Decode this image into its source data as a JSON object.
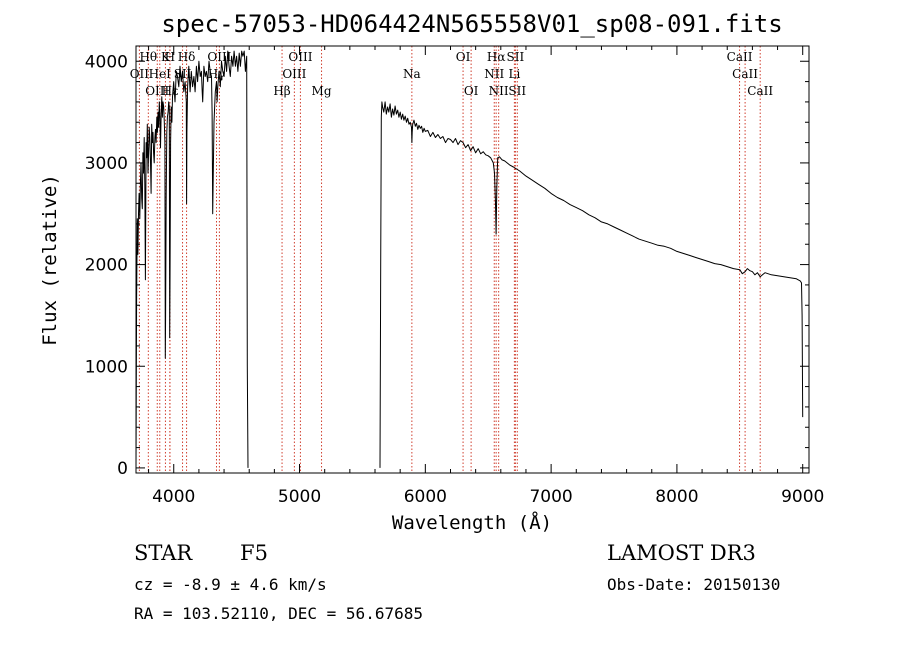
{
  "chart_data": {
    "type": "line",
    "title": "spec-57053-HD064424N565558V01_sp08-091.fits",
    "xlabel": "Wavelength (Å)",
    "ylabel": "Flux (relative)",
    "xlim": [
      3700,
      9050
    ],
    "ylim": [
      -50,
      4150
    ],
    "xticks": [
      4000,
      5000,
      6000,
      7000,
      8000,
      9000
    ],
    "yticks": [
      0,
      1000,
      2000,
      3000,
      4000
    ],
    "series": [
      {
        "name": "spectrum",
        "segments": [
          {
            "x": [
              3700,
              3705,
              3710,
              3715,
              3720,
              3725,
              3730,
              3735,
              3740,
              3745,
              3750,
              3755,
              3760,
              3765,
              3770,
              3775,
              3780,
              3785,
              3790,
              3795,
              3800,
              3805,
              3810,
              3815,
              3820,
              3825,
              3830,
              3835,
              3840,
              3845,
              3850,
              3855,
              3860,
              3865,
              3870,
              3875,
              3880,
              3885,
              3890,
              3895,
              3900,
              3905,
              3910,
              3915,
              3920,
              3925,
              3930,
              3933,
              3935,
              3940,
              3945,
              3950,
              3955,
              3960,
              3965,
              3968,
              3970,
              3975,
              3980,
              3985,
              3990,
              4000,
              4010,
              4020,
              4030,
              4040,
              4050,
              4060,
              4070,
              4080,
              4090,
              4100,
              4102,
              4105,
              4110,
              4120,
              4130,
              4140,
              4150,
              4160,
              4170,
              4180,
              4190,
              4200,
              4210,
              4220,
              4226,
              4230,
              4240,
              4250,
              4260,
              4270,
              4280,
              4290,
              4300,
              4305,
              4310,
              4320,
              4330,
              4340,
              4345,
              4350,
              4360,
              4370,
              4380,
              4390,
              4400,
              4410,
              4420,
              4430,
              4440,
              4450,
              4460,
              4470,
              4480,
              4490,
              4500,
              4510,
              4520,
              4530,
              4540,
              4550,
              4560,
              4570,
              4580,
              4585,
              4590
            ],
            "y": [
              0,
              1650,
              2450,
              2100,
              2500,
              2700,
              2450,
              2800,
              3000,
              2650,
              2550,
              3100,
              2900,
              3250,
              2800,
              1850,
              3200,
              3050,
              3380,
              2900,
              3100,
              3350,
              3250,
              3000,
              2700,
              3380,
              3200,
              3300,
              3100,
              3000,
              3250,
              3330,
              3200,
              3450,
              3300,
              3500,
              3350,
              3600,
              3450,
              3150,
              3500,
              3650,
              3450,
              3600,
              3550,
              3400,
              3200,
              1080,
              1500,
              2700,
              3300,
              3450,
              3500,
              3600,
              3550,
              1280,
              1800,
              3200,
              3550,
              3400,
              3650,
              3800,
              3600,
              3900,
              3850,
              3750,
              3950,
              3800,
              3900,
              3700,
              3800,
              3600,
              2600,
              3300,
              3750,
              3950,
              3700,
              3900,
              3750,
              3850,
              3700,
              3950,
              3800,
              4000,
              3850,
              3900,
              3700,
              3600,
              3950,
              3850,
              3900,
              3800,
              4000,
              3900,
              3850,
              3500,
              2500,
              3400,
              3700,
              3800,
              3600,
              3750,
              3900,
              3750,
              4000,
              3900,
              3850,
              4050,
              3900,
              4100,
              3950,
              3850,
              4050,
              3950,
              4100,
              3950,
              4050,
              3900,
              4080,
              3950,
              4100,
              4050,
              4100,
              3900,
              4050,
              1000,
              0
            ]
          },
          {
            "x": [
              5640,
              5645,
              5650,
              5655,
              5660,
              5670,
              5680,
              5690,
              5700,
              5710,
              5720,
              5730,
              5740,
              5750,
              5760,
              5770,
              5780,
              5790,
              5800,
              5810,
              5820,
              5830,
              5840,
              5850,
              5860,
              5870,
              5880,
              5890,
              5893,
              5896,
              5900,
              5910,
              5920,
              5930,
              5940,
              5950,
              5960,
              5970,
              5980,
              5990,
              6000,
              6020,
              6040,
              6060,
              6080,
              6100,
              6120,
              6140,
              6160,
              6180,
              6200,
              6220,
              6240,
              6260,
              6280,
              6300,
              6320,
              6340,
              6360,
              6380,
              6400,
              6420,
              6440,
              6460,
              6480,
              6500,
              6520,
              6540,
              6550,
              6558,
              6563,
              6568,
              6575,
              6590,
              6610,
              6630,
              6650,
              6670,
              6700,
              6750,
              6800,
              6850,
              6900,
              6950,
              7000,
              7050,
              7100,
              7150,
              7200,
              7250,
              7300,
              7350,
              7400,
              7450,
              7500,
              7550,
              7600,
              7650,
              7700,
              7750,
              7800,
              7850,
              7900,
              7950,
              8000,
              8050,
              8100,
              8150,
              8200,
              8250,
              8300,
              8350,
              8400,
              8450,
              8500,
              8520,
              8542,
              8560,
              8580,
              8600,
              8620,
              8640,
              8662,
              8680,
              8700,
              8750,
              8800,
              8850,
              8900,
              8950,
              8980,
              8990,
              8995,
              9000
            ],
            "y": [
              0,
              2000,
              3450,
              3600,
              3550,
              3500,
              3600,
              3480,
              3550,
              3500,
              3580,
              3450,
              3530,
              3470,
              3560,
              3480,
              3520,
              3450,
              3500,
              3430,
              3480,
              3420,
              3460,
              3400,
              3440,
              3380,
              3400,
              3350,
              3200,
              3300,
              3380,
              3420,
              3360,
              3390,
              3330,
              3370,
              3340,
              3360,
              3300,
              3340,
              3310,
              3320,
              3260,
              3300,
              3250,
              3280,
              3240,
              3260,
              3200,
              3240,
              3230,
              3200,
              3240,
              3180,
              3220,
              3200,
              3150,
              3180,
              3120,
              3160,
              3100,
              3140,
              3090,
              3110,
              3080,
              3070,
              3050,
              3000,
              2900,
              2600,
              2300,
              2750,
              3050,
              3060,
              3030,
              3020,
              3000,
              2980,
              2960,
              2920,
              2870,
              2830,
              2790,
              2750,
              2700,
              2660,
              2630,
              2590,
              2560,
              2530,
              2490,
              2460,
              2420,
              2400,
              2370,
              2340,
              2310,
              2280,
              2250,
              2230,
              2210,
              2190,
              2180,
              2160,
              2130,
              2110,
              2090,
              2070,
              2050,
              2030,
              2010,
              2000,
              1980,
              1960,
              1950,
              1910,
              1930,
              1960,
              1940,
              1930,
              1900,
              1920,
              1880,
              1900,
              1920,
              1900,
              1890,
              1880,
              1870,
              1860,
              1840,
              1820,
              1500,
              500
            ]
          }
        ]
      }
    ],
    "spectral_lines": [
      {
        "name": "Hθ",
        "x": 3798,
        "row": 1
      },
      {
        "name": "OII",
        "x": 3727,
        "row": 2
      },
      {
        "name": "OIII",
        "x": 3869,
        "row": 3
      },
      {
        "name": "K",
        "x": 3934,
        "row": 1
      },
      {
        "name": "H",
        "x": 3969,
        "row": 1
      },
      {
        "name": "HeI",
        "x": 3889,
        "row": 2
      },
      {
        "name": "Hε",
        "x": 3970,
        "row": 3
      },
      {
        "name": "Hδ",
        "x": 4102,
        "row": 1
      },
      {
        "name": "SII",
        "x": 4070,
        "row": 2
      },
      {
        "name": "Hγ",
        "x": 4340,
        "row": 2
      },
      {
        "name": "OIII",
        "x": 4363,
        "row": 1
      },
      {
        "name": "Hβ",
        "x": 4861,
        "row": 3
      },
      {
        "name": "OIII",
        "x": 4959,
        "row": 2
      },
      {
        "name": "OIII",
        "x": 5007,
        "row": 1
      },
      {
        "name": "Mg",
        "x": 5175,
        "row": 3
      },
      {
        "name": "Na",
        "x": 5893,
        "row": 2
      },
      {
        "name": "OI",
        "x": 6300,
        "row": 1
      },
      {
        "name": "OI",
        "x": 6364,
        "row": 3
      },
      {
        "name": "Hα",
        "x": 6563,
        "row": 1
      },
      {
        "name": "NII",
        "x": 6548,
        "row": 2
      },
      {
        "name": "NII",
        "x": 6583,
        "row": 3
      },
      {
        "name": "SII",
        "x": 6716,
        "row": 1
      },
      {
        "name": "Li",
        "x": 6708,
        "row": 2
      },
      {
        "name": "SII",
        "x": 6731,
        "row": 3
      },
      {
        "name": "CaII",
        "x": 8542,
        "row": 2
      },
      {
        "name": "CaII",
        "x": 8498,
        "row": 1
      },
      {
        "name": "CaII",
        "x": 8662,
        "row": 3
      }
    ]
  },
  "info": {
    "object_class": "STAR",
    "subclass": "F5",
    "survey": "LAMOST DR3",
    "cz": "cz = -8.9 ± 4.6 km/s",
    "obs_date": "Obs-Date: 20150130",
    "coords": "RA = 103.52110, DEC =  56.67685"
  },
  "colors": {
    "spectrum": "#000000",
    "line_marker": "#d04030"
  }
}
